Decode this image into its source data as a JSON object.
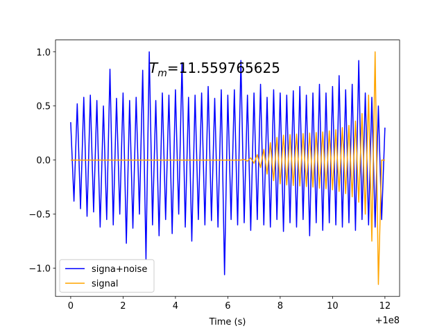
{
  "chart_data": {
    "type": "line",
    "xlabel": "Time (s)",
    "x_offset_label": "+1e8",
    "annotation": {
      "symbol": "T",
      "subscript": "m",
      "text": "=11.559765625"
    },
    "x": [
      0,
      0.125,
      0.25,
      0.375,
      0.5,
      0.625,
      0.75,
      0.875,
      1,
      1.125,
      1.25,
      1.375,
      1.5,
      1.625,
      1.75,
      1.875,
      2,
      2.125,
      2.25,
      2.375,
      2.5,
      2.625,
      2.75,
      2.875,
      3,
      3.125,
      3.25,
      3.375,
      3.5,
      3.625,
      3.75,
      3.875,
      4,
      4.125,
      4.25,
      4.375,
      4.5,
      4.625,
      4.75,
      4.875,
      5,
      5.125,
      5.25,
      5.375,
      5.5,
      5.625,
      5.75,
      5.875,
      6,
      6.125,
      6.25,
      6.375,
      6.5,
      6.625,
      6.75,
      6.875,
      7,
      7.125,
      7.25,
      7.375,
      7.5,
      7.625,
      7.75,
      7.875,
      8,
      8.125,
      8.25,
      8.375,
      8.5,
      8.625,
      8.75,
      8.875,
      9,
      9.125,
      9.25,
      9.375,
      9.5,
      9.625,
      9.75,
      9.875,
      10,
      10.125,
      10.25,
      10.375,
      10.5,
      10.625,
      10.75,
      10.875,
      11,
      11.125,
      11.25,
      11.375,
      11.5,
      11.625,
      11.75,
      11.875,
      12
    ],
    "series": [
      {
        "name": "signa+noise",
        "color": "#0000ff",
        "values": [
          0.35,
          -0.38,
          0.52,
          -0.45,
          0.58,
          -0.52,
          0.6,
          -0.48,
          0.55,
          -0.62,
          0.5,
          -0.55,
          0.84,
          -0.6,
          0.57,
          -0.5,
          0.62,
          -0.77,
          0.55,
          -0.63,
          0.58,
          -0.5,
          0.83,
          -0.92,
          1.0,
          -0.6,
          0.55,
          -0.7,
          0.62,
          -0.55,
          0.6,
          -0.68,
          0.65,
          -0.5,
          0.9,
          -0.62,
          0.58,
          -0.75,
          0.6,
          -0.55,
          0.62,
          -0.6,
          0.68,
          -0.56,
          0.57,
          -0.62,
          0.65,
          -1.06,
          0.6,
          -0.55,
          0.65,
          -0.6,
          0.92,
          -0.58,
          0.6,
          -0.65,
          0.62,
          -0.55,
          0.7,
          -0.6,
          0.58,
          -0.62,
          0.65,
          -0.55,
          0.62,
          -0.66,
          0.6,
          -0.58,
          0.64,
          -0.62,
          0.68,
          -0.55,
          0.6,
          -0.7,
          0.62,
          -0.58,
          0.7,
          -0.65,
          0.62,
          -0.58,
          0.68,
          -0.6,
          0.78,
          -0.62,
          0.65,
          -0.58,
          0.7,
          -0.65,
          0.92,
          -0.55,
          0.62,
          -0.6,
          0.58,
          -0.62,
          0.5,
          -0.55,
          0.3
        ]
      },
      {
        "name": "signal",
        "color": "#ffa500",
        "values": [
          0,
          0,
          0,
          0,
          0,
          0,
          0,
          0,
          0,
          0,
          0,
          0,
          0,
          0,
          0,
          0,
          0,
          0,
          0,
          0,
          0,
          0,
          0,
          0,
          0,
          0,
          0,
          0,
          0,
          0,
          0,
          0,
          0,
          0,
          0,
          0,
          0,
          0,
          0,
          0,
          0,
          0,
          0,
          0,
          0,
          0,
          0,
          0,
          0,
          0,
          0,
          0,
          0,
          0.005,
          -0.01,
          0.02,
          -0.03,
          0.05,
          -0.07,
          0.1,
          -0.13,
          0.16,
          -0.19,
          0.21,
          -0.22,
          0.23,
          -0.23,
          0.235,
          -0.235,
          0.24,
          -0.24,
          0.245,
          -0.245,
          0.25,
          -0.25,
          0.255,
          -0.26,
          0.26,
          -0.265,
          0.27,
          -0.275,
          0.28,
          -0.29,
          0.3,
          -0.31,
          0.32,
          -0.34,
          0.36,
          -0.39,
          0.43,
          -0.5,
          0.6,
          -0.75,
          1.0,
          -1.15,
          0,
          0
        ]
      }
    ],
    "xlim": [
      -0.58,
      12.56
    ],
    "ylim": [
      -1.26,
      1.11
    ],
    "xticks": [
      0,
      2,
      4,
      6,
      8,
      10,
      12
    ],
    "yticks": [
      {
        "value": -1,
        "label": "−1.0"
      },
      {
        "value": -0.5,
        "label": "−0.5"
      },
      {
        "value": 0,
        "label": "0.0"
      },
      {
        "value": 0.5,
        "label": "0.5"
      },
      {
        "value": 1,
        "label": "1.0"
      }
    ],
    "legend": "lower left"
  }
}
